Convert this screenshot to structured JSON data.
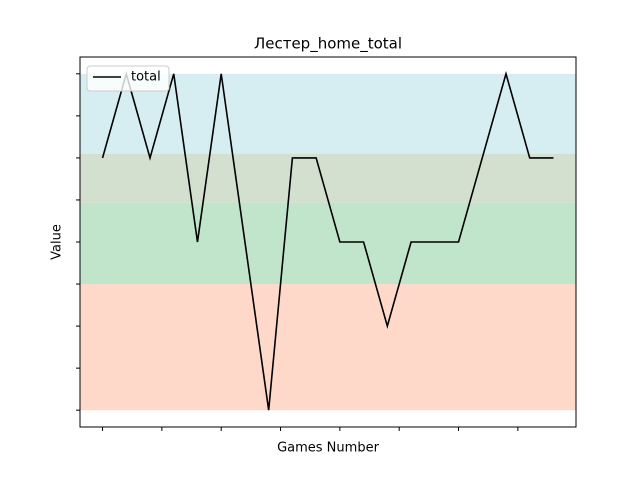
{
  "chart_data": {
    "type": "line",
    "title": "Лестер_home_total",
    "xlabel": "Games Number",
    "ylabel": "Value",
    "x": [
      0,
      1,
      2,
      3,
      4,
      5,
      6,
      7,
      8,
      9,
      10,
      11,
      12,
      13,
      14,
      15,
      16,
      17,
      18,
      19
    ],
    "series": [
      {
        "name": "total",
        "color": "#000000",
        "values": [
          6,
          8,
          6,
          8,
          4,
          8,
          4,
          0,
          6,
          6,
          4,
          4,
          2,
          4,
          4,
          4,
          6,
          8,
          6,
          6
        ]
      }
    ],
    "xlim": [
      -0.95,
      19.95
    ],
    "xticks": [
      0,
      2.5,
      5,
      7.5,
      10,
      12.5,
      15,
      17.5
    ],
    "ylim": [
      -0.4,
      8.4
    ],
    "yticks": [
      0,
      1,
      2,
      3,
      4,
      5,
      6,
      7,
      8
    ],
    "bands": [
      {
        "from": 6.1,
        "to": 8,
        "color": "#d6eef2"
      },
      {
        "from": 4.93,
        "to": 6.1,
        "color": "#d3dfcf"
      },
      {
        "from": 3,
        "to": 4.93,
        "color": "#c0e5cb"
      },
      {
        "from": 0,
        "to": 3,
        "color": "#fed9ca"
      }
    ],
    "legend": "upper left"
  }
}
